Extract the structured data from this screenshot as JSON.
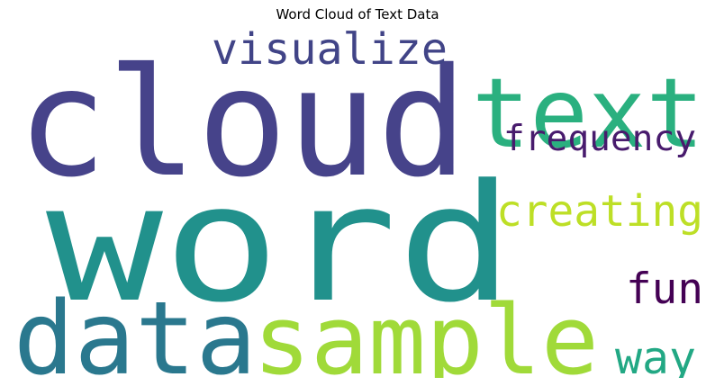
{
  "chart_data": {
    "type": "wordcloud",
    "title": "Word Cloud of Text Data",
    "words": [
      {
        "text": "word",
        "weight": 1.0,
        "color": "#21918c"
      },
      {
        "text": "cloud",
        "weight": 0.86,
        "color": "#46438a"
      },
      {
        "text": "sample",
        "weight": 0.62,
        "color": "#a0da39"
      },
      {
        "text": "data",
        "weight": 0.58,
        "color": "#2a788e"
      },
      {
        "text": "text",
        "weight": 0.52,
        "color": "#2ab07f"
      },
      {
        "text": "visualize",
        "weight": 0.28,
        "color": "#414487"
      },
      {
        "text": "creating",
        "weight": 0.26,
        "color": "#bddf26"
      },
      {
        "text": "frequency",
        "weight": 0.22,
        "color": "#481b6d"
      },
      {
        "text": "fun",
        "weight": 0.24,
        "color": "#440154"
      },
      {
        "text": "way",
        "weight": 0.24,
        "color": "#22a884"
      }
    ],
    "background": "#ffffff",
    "colormap": "viridis"
  }
}
